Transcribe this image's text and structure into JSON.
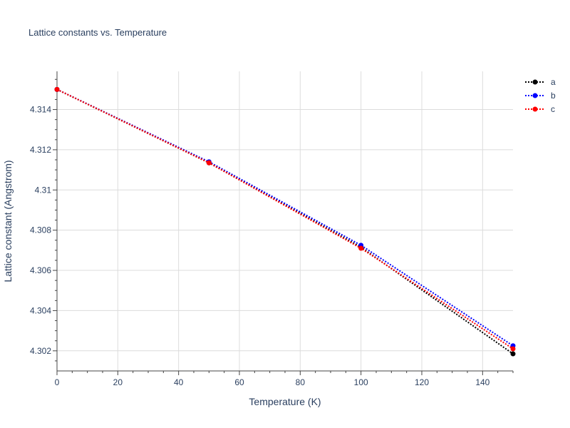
{
  "chart_data": {
    "type": "line",
    "title": "Lattice constants vs. Temperature",
    "xlabel": "Temperature (K)",
    "ylabel": "Lattice constant (Angstrom)",
    "xlim": [
      0,
      150
    ],
    "ylim": [
      4.301,
      4.3159
    ],
    "x_ticks": [
      0,
      20,
      40,
      60,
      80,
      100,
      120,
      140
    ],
    "y_ticks": [
      4.302,
      4.304,
      4.306,
      4.308,
      4.31,
      4.312,
      4.314
    ],
    "y_tick_labels": [
      "4.302",
      "4.304",
      "4.306",
      "4.308",
      "4.31",
      "4.312",
      "4.314"
    ],
    "grid": true,
    "legend_position": "top-right",
    "x": [
      0,
      50,
      100,
      150
    ],
    "series": [
      {
        "name": "a",
        "color": "#000000",
        "values": [
          4.315,
          4.31135,
          4.30715,
          4.30185
        ]
      },
      {
        "name": "b",
        "color": "#0000ff",
        "values": [
          4.315,
          4.3114,
          4.30725,
          4.30225
        ]
      },
      {
        "name": "c",
        "color": "#ff0000",
        "values": [
          4.315,
          4.31135,
          4.3071,
          4.3021
        ]
      }
    ]
  }
}
